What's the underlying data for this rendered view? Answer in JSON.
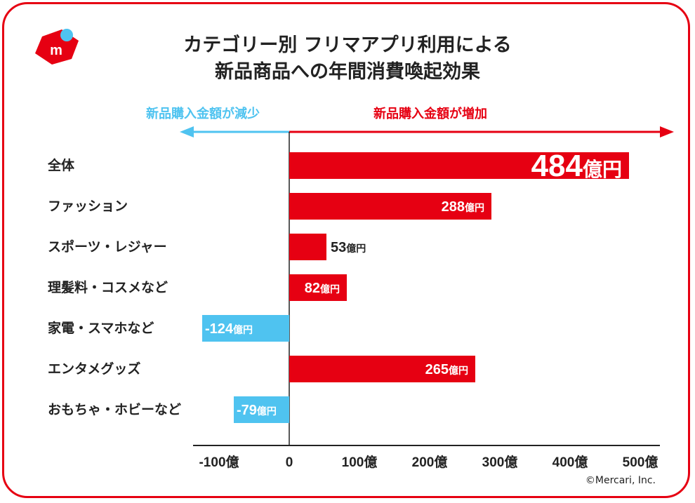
{
  "title": [
    "カテゴリー別 フリマアプリ利用による",
    "新品商品への年間消費喚起効果"
  ],
  "direction_labels": {
    "decrease": "新品購入金額が減少",
    "increase": "新品購入金額が増加"
  },
  "copyright": "©Mercari, Inc.",
  "colors": {
    "positive": "#e60012",
    "negative": "#4fc3f0",
    "text": "#222222",
    "frame": "#e60012"
  },
  "chart_data": {
    "type": "bar",
    "orientation": "horizontal",
    "categories": [
      "全体",
      "ファッション",
      "スポーツ・レジャー",
      "理髪料・コスメなど",
      "家電・スマホなど",
      "エンタメグッズ",
      "おもちゃ・ホビーなど"
    ],
    "values": [
      484,
      288,
      53,
      82,
      -124,
      265,
      -79
    ],
    "value_unit": "億円",
    "xlim": [
      -100,
      500
    ],
    "xticks": [
      -100,
      0,
      100,
      200,
      300,
      400,
      500
    ],
    "tick_labels": [
      "-100億",
      "0",
      "100億",
      "200億",
      "300億",
      "400億",
      "500億"
    ],
    "data_labels": [
      "484",
      "288",
      "53",
      "82",
      "-124",
      "265",
      "-79"
    ],
    "grid": false
  }
}
